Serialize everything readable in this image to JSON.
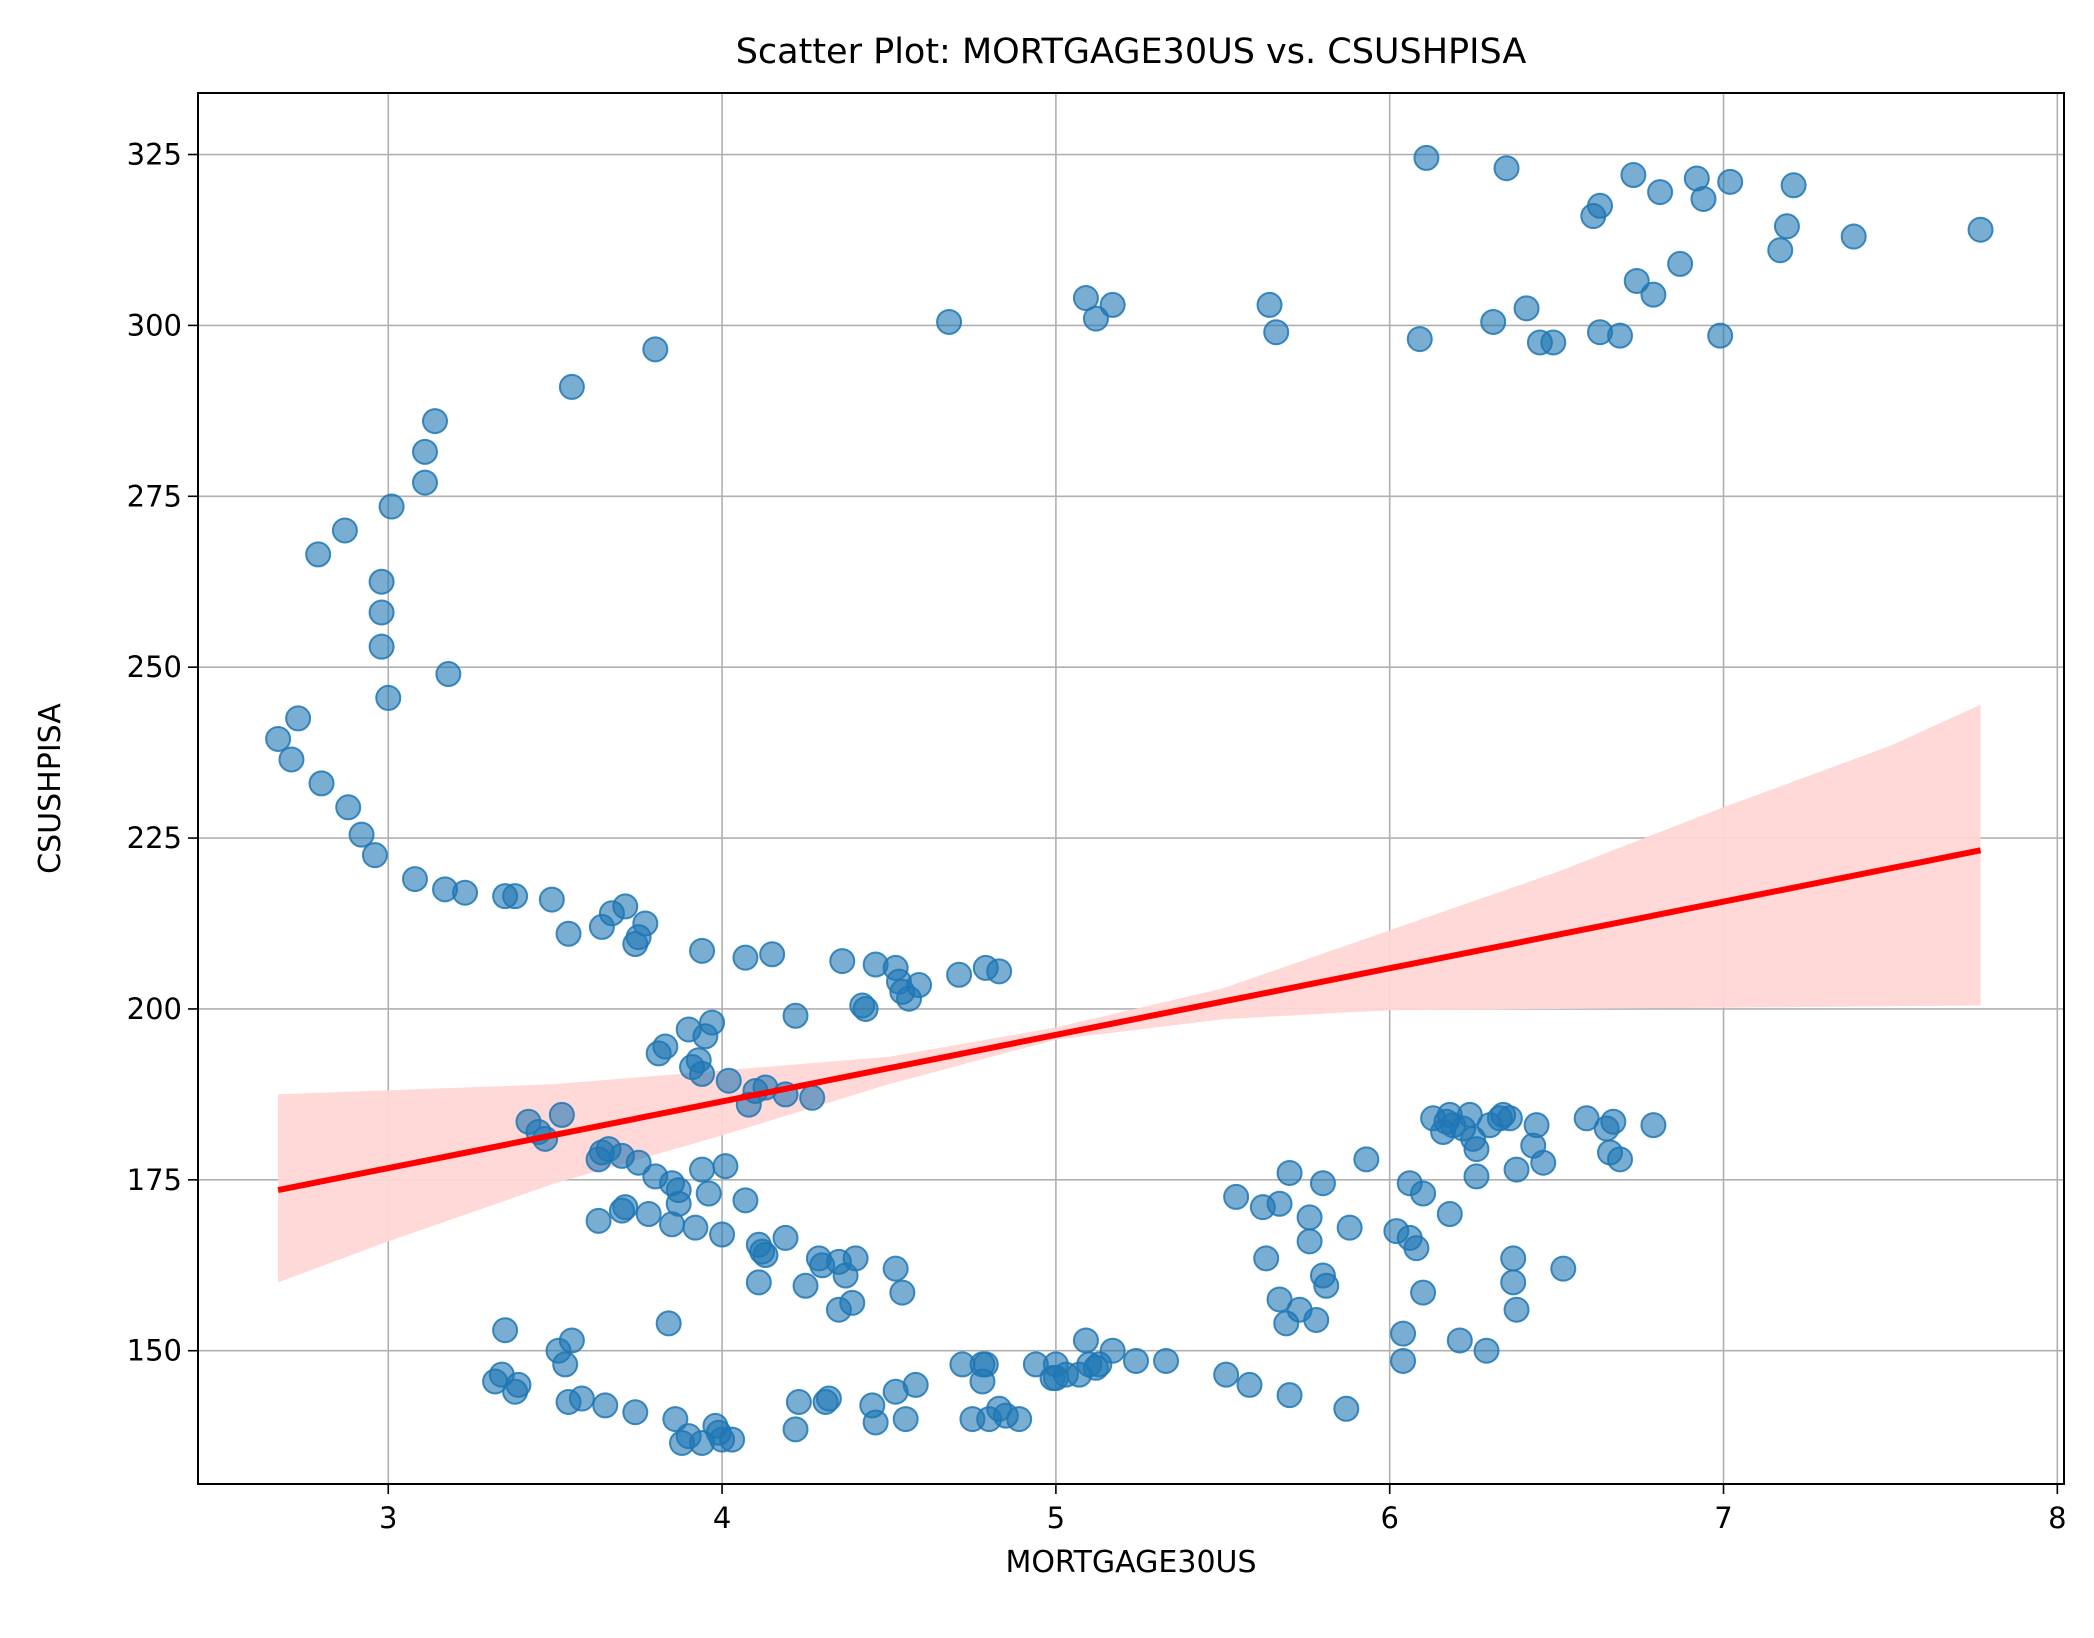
{
  "chart_data": {
    "type": "scatter",
    "title": "Scatter Plot: MORTGAGE30US vs. CSUSHPISA",
    "xlabel": "MORTGAGE30US",
    "ylabel": "CSUSHPISA",
    "xlim": [
      2.43,
      8.02
    ],
    "ylim": [
      130.5,
      334
    ],
    "xticks": [
      3,
      4,
      5,
      6,
      7,
      8
    ],
    "yticks": [
      150,
      175,
      200,
      225,
      250,
      275,
      300,
      325
    ],
    "grid": true,
    "point_color": "#1f77b4",
    "fit_color": "#ff0000",
    "band_color": "#ffd6d6",
    "regression": {
      "x": [
        2.67,
        7.77
      ],
      "y": [
        173.5,
        223.2
      ],
      "band_upper": [
        [
          2.67,
          187.5
        ],
        [
          3.5,
          189
        ],
        [
          4.5,
          193
        ],
        [
          5.0,
          197.3
        ],
        [
          5.5,
          203
        ],
        [
          6.0,
          211.5
        ],
        [
          6.5,
          220
        ],
        [
          7.0,
          229.5
        ],
        [
          7.5,
          238.5
        ],
        [
          7.77,
          244.5
        ]
      ],
      "band_lower": [
        [
          2.67,
          160
        ],
        [
          3.0,
          166
        ],
        [
          3.5,
          174.5
        ],
        [
          4.0,
          181.5
        ],
        [
          4.5,
          189
        ],
        [
          5.0,
          195.5
        ],
        [
          5.5,
          198.5
        ],
        [
          6.0,
          199.8
        ],
        [
          6.5,
          200
        ],
        [
          7.0,
          200.2
        ],
        [
          7.77,
          200.5
        ]
      ]
    },
    "points": [
      [
        2.67,
        239.5
      ],
      [
        2.73,
        242.5
      ],
      [
        2.71,
        236.5
      ],
      [
        2.8,
        233
      ],
      [
        2.79,
        266.5
      ],
      [
        2.87,
        270
      ],
      [
        2.88,
        229.5
      ],
      [
        2.92,
        225.5
      ],
      [
        2.96,
        222.5
      ],
      [
        2.98,
        262.5
      ],
      [
        2.98,
        258
      ],
      [
        2.98,
        253
      ],
      [
        3.0,
        245.5
      ],
      [
        3.01,
        273.5
      ],
      [
        3.11,
        277
      ],
      [
        3.11,
        281.5
      ],
      [
        3.14,
        286
      ],
      [
        3.18,
        249
      ],
      [
        3.08,
        219
      ],
      [
        3.17,
        217.5
      ],
      [
        3.23,
        217
      ],
      [
        3.35,
        216.5
      ],
      [
        3.38,
        216.5
      ],
      [
        3.49,
        216
      ],
      [
        3.54,
        211
      ],
      [
        3.55,
        291
      ],
      [
        3.64,
        212
      ],
      [
        3.67,
        214
      ],
      [
        3.71,
        215
      ],
      [
        3.74,
        209.5
      ],
      [
        3.75,
        210.5
      ],
      [
        3.77,
        212.5
      ],
      [
        3.8,
        296.5
      ],
      [
        3.94,
        208.5
      ],
      [
        4.07,
        207.5
      ],
      [
        4.15,
        208
      ],
      [
        4.22,
        199
      ],
      [
        4.36,
        207
      ],
      [
        4.42,
        200.5
      ],
      [
        4.43,
        200
      ],
      [
        4.46,
        206.5
      ],
      [
        4.52,
        206
      ],
      [
        4.53,
        204
      ],
      [
        4.54,
        202.5
      ],
      [
        4.56,
        201.5
      ],
      [
        4.59,
        203.5
      ],
      [
        4.71,
        205
      ],
      [
        4.79,
        206
      ],
      [
        4.83,
        205.5
      ],
      [
        4.68,
        300.5
      ],
      [
        3.81,
        193.5
      ],
      [
        3.83,
        194.5
      ],
      [
        3.9,
        197
      ],
      [
        3.91,
        191.5
      ],
      [
        3.93,
        192.5
      ],
      [
        3.94,
        190.5
      ],
      [
        3.95,
        196
      ],
      [
        3.97,
        198
      ],
      [
        4.02,
        189.5
      ],
      [
        4.08,
        186
      ],
      [
        4.1,
        188
      ],
      [
        4.13,
        188.5
      ],
      [
        4.19,
        187.5
      ],
      [
        4.27,
        187
      ],
      [
        3.42,
        183.5
      ],
      [
        3.45,
        182
      ],
      [
        3.47,
        181
      ],
      [
        3.52,
        184.5
      ],
      [
        3.63,
        178
      ],
      [
        3.64,
        179
      ],
      [
        3.66,
        179.5
      ],
      [
        3.7,
        178.5
      ],
      [
        3.75,
        177.5
      ],
      [
        3.8,
        175.5
      ],
      [
        3.85,
        174.5
      ],
      [
        3.87,
        173.5
      ],
      [
        3.94,
        176.5
      ],
      [
        4.01,
        177
      ],
      [
        3.63,
        169
      ],
      [
        3.7,
        170.5
      ],
      [
        3.71,
        171
      ],
      [
        3.78,
        170
      ],
      [
        3.85,
        168.5
      ],
      [
        3.87,
        171.5
      ],
      [
        3.92,
        168
      ],
      [
        3.96,
        173
      ],
      [
        4.0,
        167
      ],
      [
        4.07,
        172
      ],
      [
        4.11,
        165.5
      ],
      [
        4.12,
        164.5
      ],
      [
        4.13,
        164
      ],
      [
        4.19,
        166.5
      ],
      [
        4.29,
        163.5
      ],
      [
        4.3,
        162.5
      ],
      [
        4.35,
        163
      ],
      [
        4.37,
        161
      ],
      [
        4.4,
        163.5
      ],
      [
        4.52,
        162
      ],
      [
        4.11,
        160
      ],
      [
        4.25,
        159.5
      ],
      [
        4.35,
        156
      ],
      [
        4.39,
        157
      ],
      [
        4.54,
        158.5
      ],
      [
        3.84,
        154
      ],
      [
        3.35,
        153
      ],
      [
        3.32,
        145.5
      ],
      [
        3.34,
        146.5
      ],
      [
        3.38,
        144
      ],
      [
        3.39,
        145
      ],
      [
        3.51,
        150
      ],
      [
        3.53,
        148
      ],
      [
        3.55,
        151.5
      ],
      [
        3.54,
        142.5
      ],
      [
        3.58,
        143
      ],
      [
        3.65,
        142
      ],
      [
        3.74,
        141
      ],
      [
        3.86,
        140
      ],
      [
        3.88,
        136.5
      ],
      [
        3.9,
        137.5
      ],
      [
        3.94,
        136.5
      ],
      [
        3.98,
        139
      ],
      [
        3.99,
        138
      ],
      [
        4.0,
        137
      ],
      [
        4.03,
        137
      ],
      [
        4.22,
        138.5
      ],
      [
        4.23,
        142.5
      ],
      [
        4.31,
        142.5
      ],
      [
        4.32,
        143
      ],
      [
        4.45,
        142
      ],
      [
        4.46,
        139.5
      ],
      [
        4.52,
        144
      ],
      [
        4.55,
        140
      ],
      [
        4.58,
        145
      ],
      [
        4.72,
        148
      ],
      [
        4.75,
        140
      ],
      [
        4.78,
        148
      ],
      [
        4.79,
        148
      ],
      [
        4.78,
        145.5
      ],
      [
        4.8,
        140
      ],
      [
        4.83,
        141.5
      ],
      [
        4.85,
        140.5
      ],
      [
        4.89,
        140
      ],
      [
        4.94,
        148
      ],
      [
        4.99,
        146
      ],
      [
        5.0,
        148
      ],
      [
        5.0,
        146
      ],
      [
        5.03,
        146.5
      ],
      [
        5.07,
        146.5
      ],
      [
        5.09,
        151.5
      ],
      [
        5.1,
        148
      ],
      [
        5.12,
        147.5
      ],
      [
        5.13,
        148
      ],
      [
        5.17,
        150
      ],
      [
        5.24,
        148.5
      ],
      [
        5.33,
        148.5
      ],
      [
        5.51,
        146.5
      ],
      [
        5.58,
        145
      ],
      [
        5.7,
        143.5
      ],
      [
        5.87,
        141.5
      ],
      [
        5.09,
        304
      ],
      [
        5.12,
        301
      ],
      [
        5.17,
        303
      ],
      [
        5.64,
        303
      ],
      [
        5.66,
        299
      ],
      [
        5.54,
        172.5
      ],
      [
        5.62,
        171
      ],
      [
        5.67,
        171.5
      ],
      [
        5.7,
        176
      ],
      [
        5.76,
        169.5
      ],
      [
        5.76,
        166
      ],
      [
        5.8,
        174.5
      ],
      [
        5.88,
        168
      ],
      [
        5.93,
        178
      ],
      [
        5.63,
        163.5
      ],
      [
        5.67,
        157.5
      ],
      [
        5.69,
        154
      ],
      [
        5.73,
        156
      ],
      [
        5.78,
        154.5
      ],
      [
        5.8,
        161
      ],
      [
        5.81,
        159.5
      ],
      [
        6.04,
        152.5
      ],
      [
        6.04,
        148.5
      ],
      [
        6.02,
        167.5
      ],
      [
        6.06,
        166.5
      ],
      [
        6.08,
        165
      ],
      [
        6.06,
        174.5
      ],
      [
        6.1,
        173
      ],
      [
        6.1,
        158.5
      ],
      [
        6.18,
        170
      ],
      [
        6.21,
        151.5
      ],
      [
        6.29,
        150
      ],
      [
        6.13,
        184
      ],
      [
        6.16,
        182
      ],
      [
        6.17,
        183.5
      ],
      [
        6.18,
        184.5
      ],
      [
        6.19,
        183
      ],
      [
        6.22,
        182.5
      ],
      [
        6.24,
        184.5
      ],
      [
        6.25,
        181
      ],
      [
        6.26,
        179.5
      ],
      [
        6.26,
        175.5
      ],
      [
        6.3,
        183
      ],
      [
        6.33,
        184
      ],
      [
        6.34,
        184.5
      ],
      [
        6.36,
        184
      ],
      [
        6.38,
        176.5
      ],
      [
        6.43,
        180
      ],
      [
        6.44,
        183
      ],
      [
        6.46,
        177.5
      ],
      [
        6.37,
        163.5
      ],
      [
        6.37,
        160
      ],
      [
        6.38,
        156
      ],
      [
        6.52,
        162
      ],
      [
        6.59,
        184
      ],
      [
        6.65,
        182.5
      ],
      [
        6.67,
        183.5
      ],
      [
        6.66,
        179
      ],
      [
        6.69,
        178
      ],
      [
        6.79,
        183
      ],
      [
        6.11,
        324.5
      ],
      [
        6.35,
        323
      ],
      [
        6.61,
        316
      ],
      [
        6.63,
        317.5
      ],
      [
        6.73,
        322
      ],
      [
        6.81,
        319.5
      ],
      [
        6.87,
        309
      ],
      [
        6.92,
        321.5
      ],
      [
        6.94,
        318.5
      ],
      [
        7.02,
        321
      ],
      [
        7.21,
        320.5
      ],
      [
        7.19,
        314.5
      ],
      [
        7.17,
        311
      ],
      [
        7.39,
        313
      ],
      [
        7.77,
        314
      ],
      [
        6.74,
        306.5
      ],
      [
        6.79,
        304.5
      ],
      [
        6.09,
        298
      ],
      [
        6.31,
        300.5
      ],
      [
        6.41,
        302.5
      ],
      [
        6.45,
        297.5
      ],
      [
        6.49,
        297.5
      ],
      [
        6.63,
        299
      ],
      [
        6.69,
        298.5
      ],
      [
        6.99,
        298.5
      ]
    ]
  }
}
